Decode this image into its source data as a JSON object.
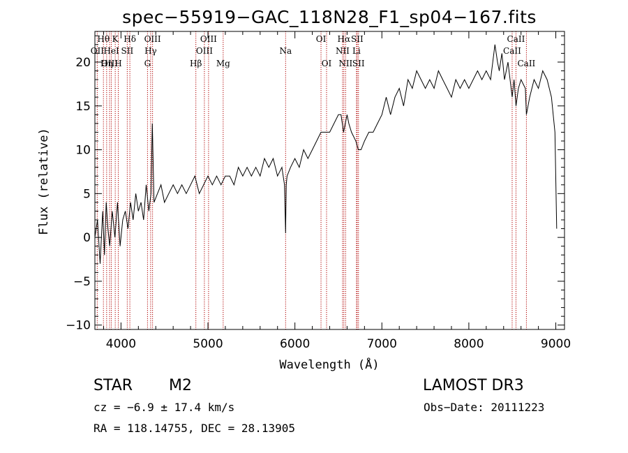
{
  "chart_data": {
    "type": "line",
    "title": "spec−55919−GAC_118N28_F1_sp04−167.fits",
    "xlabel": "Wavelength (Å)",
    "ylabel": "Flux (relative)",
    "xlim": [
      3700,
      9100
    ],
    "ylim": [
      -10.5,
      23.5
    ],
    "xticks": [
      4000,
      5000,
      6000,
      7000,
      8000,
      9000
    ],
    "xtick_labels": [
      "4000",
      "5000",
      "6000",
      "7000",
      "8000",
      "9000"
    ],
    "yticks": [
      -10,
      -5,
      0,
      5,
      10,
      15,
      20
    ],
    "ytick_labels": [
      "−10",
      "−5",
      "0",
      "5",
      "10",
      "15",
      "20"
    ],
    "series": [
      {
        "name": "flux",
        "x": [
          3700,
          3730,
          3760,
          3790,
          3810,
          3830,
          3850,
          3870,
          3900,
          3930,
          3960,
          3990,
          4020,
          4050,
          4080,
          4110,
          4140,
          4170,
          4200,
          4230,
          4260,
          4290,
          4320,
          4345,
          4360,
          4380,
          4420,
          4460,
          4500,
          4550,
          4600,
          4650,
          4700,
          4750,
          4800,
          4850,
          4900,
          4950,
          5000,
          5050,
          5100,
          5150,
          5200,
          5250,
          5300,
          5350,
          5400,
          5450,
          5500,
          5550,
          5600,
          5650,
          5700,
          5750,
          5800,
          5850,
          5880,
          5893,
          5900,
          5910,
          5950,
          6000,
          6050,
          6100,
          6150,
          6200,
          6250,
          6300,
          6350,
          6400,
          6450,
          6500,
          6530,
          6560,
          6580,
          6600,
          6620,
          6650,
          6700,
          6730,
          6760,
          6800,
          6850,
          6900,
          6950,
          7000,
          7050,
          7100,
          7150,
          7200,
          7250,
          7300,
          7350,
          7400,
          7450,
          7500,
          7550,
          7600,
          7650,
          7700,
          7750,
          7800,
          7850,
          7900,
          7950,
          8000,
          8050,
          8100,
          8150,
          8200,
          8250,
          8300,
          8330,
          8350,
          8380,
          8410,
          8450,
          8498,
          8520,
          8542,
          8570,
          8600,
          8650,
          8662,
          8700,
          8750,
          8800,
          8850,
          8900,
          8950,
          8990,
          9010
        ],
        "values": [
          0,
          2,
          -3,
          3,
          -2,
          4,
          1,
          -1,
          3,
          0,
          4,
          -1,
          2,
          3,
          1,
          4,
          2,
          5,
          3,
          4,
          2,
          6,
          3,
          5,
          13,
          4,
          5,
          6,
          4,
          5,
          6,
          5,
          6,
          5,
          6,
          7,
          5,
          6,
          7,
          6,
          7,
          6,
          7,
          7,
          6,
          8,
          7,
          8,
          7,
          8,
          7,
          9,
          8,
          9,
          7,
          8,
          6,
          0.5,
          6,
          7,
          8,
          9,
          8,
          10,
          9,
          10,
          11,
          12,
          12,
          12,
          13,
          14,
          14,
          12,
          13,
          14,
          13,
          12,
          11,
          10,
          10,
          11,
          12,
          12,
          13,
          14,
          16,
          14,
          16,
          17,
          15,
          18,
          17,
          19,
          18,
          17,
          18,
          17,
          19,
          18,
          17,
          16,
          18,
          17,
          18,
          17,
          18,
          19,
          18,
          19,
          18,
          22,
          20,
          19,
          21,
          18,
          20,
          16,
          18,
          15,
          17,
          18,
          17,
          14,
          16,
          18,
          17,
          19,
          18,
          16,
          12,
          1
        ]
      }
    ],
    "spectral_lines": [
      {
        "label": "Hθ",
        "wavelength": 3798,
        "row": 1
      },
      {
        "label": "OII",
        "wavelength": 3727,
        "row": 2
      },
      {
        "label": "OIII",
        "wavelength": 3869,
        "row": 3
      },
      {
        "label": "K",
        "wavelength": 3934,
        "row": 1
      },
      {
        "label": "HeI",
        "wavelength": 3889,
        "row": 2
      },
      {
        "label": "Hη",
        "wavelength": 3835,
        "row": 3
      },
      {
        "label": "SII",
        "wavelength": 4072,
        "row": 2
      },
      {
        "label": "H",
        "wavelength": 3969,
        "row": 3
      },
      {
        "label": "Hδ",
        "wavelength": 4102,
        "row": 1
      },
      {
        "label": "OIII",
        "wavelength": 4363,
        "row": 1
      },
      {
        "label": "Hγ",
        "wavelength": 4341,
        "row": 2
      },
      {
        "label": "G",
        "wavelength": 4305,
        "row": 3
      },
      {
        "label": "OIII",
        "wavelength": 5007,
        "row": 1
      },
      {
        "label": "OIII",
        "wavelength": 4959,
        "row": 2
      },
      {
        "label": "Hβ",
        "wavelength": 4861,
        "row": 3
      },
      {
        "label": "Mg",
        "wavelength": 5175,
        "row": 3
      },
      {
        "label": "Na",
        "wavelength": 5893,
        "row": 2
      },
      {
        "label": "OI",
        "wavelength": 6300,
        "row": 1
      },
      {
        "label": "OI",
        "wavelength": 6364,
        "row": 3
      },
      {
        "label": "Hα",
        "wavelength": 6563,
        "row": 1
      },
      {
        "label": "SII",
        "wavelength": 6716,
        "row": 1
      },
      {
        "label": "NII",
        "wavelength": 6548,
        "row": 2
      },
      {
        "label": "Li",
        "wavelength": 6708,
        "row": 2
      },
      {
        "label": "NII",
        "wavelength": 6583,
        "row": 3
      },
      {
        "label": "SII",
        "wavelength": 6731,
        "row": 3
      },
      {
        "label": "CaII",
        "wavelength": 8542,
        "row": 1
      },
      {
        "label": "CaII",
        "wavelength": 8498,
        "row": 2
      },
      {
        "label": "CaII",
        "wavelength": 8662,
        "row": 3
      }
    ]
  },
  "info": {
    "object_type": "STAR",
    "object_class": "M2",
    "survey": "LAMOST DR3",
    "cz": "cz = −6.9 ± 17.4 km/s",
    "obs_date": "Obs−Date: 20111223",
    "radec": "RA = 118.14755, DEC =  28.13905"
  }
}
